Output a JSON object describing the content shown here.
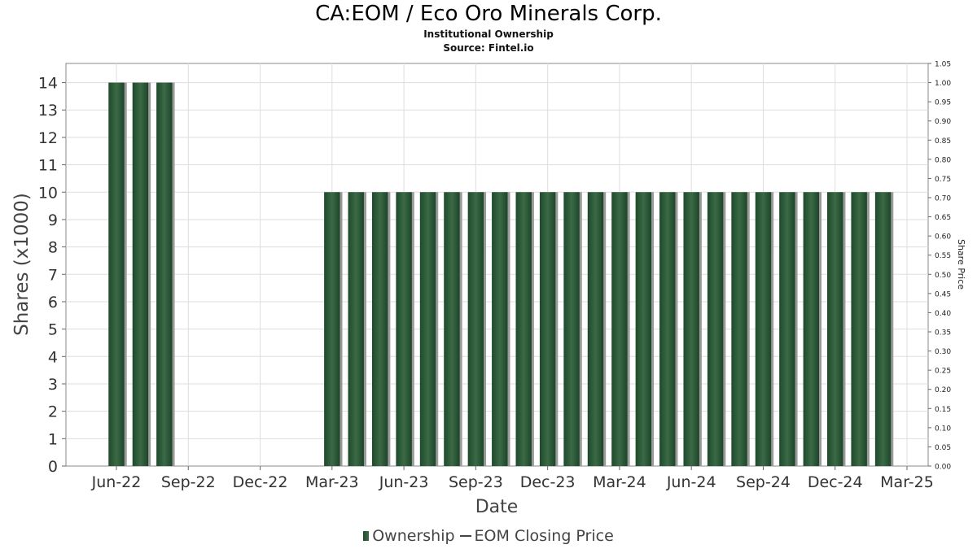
{
  "title": "CA:EOM / Eco Oro Minerals Corp.",
  "subtitle": "Institutional Ownership",
  "source": "Source: Fintel.io",
  "legend": {
    "ownership": "Ownership",
    "price": "EOM Closing Price"
  },
  "colors": {
    "bar": "#2a5436",
    "bar_dark": "#1f4a2c",
    "bar_shadow": "#9a9a9a",
    "grid": "#dddddd"
  },
  "chart_data": {
    "type": "bar",
    "xlabel": "Date",
    "ylabel": "Shares (x1000)",
    "y2label": "Share Price",
    "ylim": [
      0,
      14.7
    ],
    "y2lim": [
      0,
      1.05
    ],
    "grid": true,
    "legend_position": "bottom",
    "x_ticks": [
      "Jun-22",
      "Sep-22",
      "Dec-22",
      "Mar-23",
      "Jun-23",
      "Sep-23",
      "Dec-23",
      "Mar-24",
      "Jun-24",
      "Sep-24",
      "Dec-24",
      "Mar-25"
    ],
    "y_ticks": [
      0,
      1,
      2,
      3,
      4,
      5,
      6,
      7,
      8,
      9,
      10,
      11,
      12,
      13,
      14
    ],
    "y2_ticks": [
      "0.00",
      "0.05",
      "0.10",
      "0.15",
      "0.20",
      "0.25",
      "0.30",
      "0.35",
      "0.40",
      "0.45",
      "0.50",
      "0.55",
      "0.60",
      "0.65",
      "0.70",
      "0.75",
      "0.80",
      "0.85",
      "0.90",
      "0.95",
      "1.00",
      "1.05"
    ],
    "series": [
      {
        "name": "Ownership",
        "x": [
          "2022-06-01",
          "2022-07-01",
          "2022-08-01",
          "2023-03-01",
          "2023-04-01",
          "2023-05-01",
          "2023-06-01",
          "2023-07-01",
          "2023-08-01",
          "2023-09-01",
          "2023-10-01",
          "2023-11-01",
          "2023-12-01",
          "2024-01-01",
          "2024-02-01",
          "2024-03-01",
          "2024-04-01",
          "2024-05-01",
          "2024-06-01",
          "2024-07-01",
          "2024-08-01",
          "2024-09-01",
          "2024-10-01",
          "2024-11-01",
          "2024-12-01",
          "2025-01-01",
          "2025-02-01"
        ],
        "values": [
          14,
          14,
          14,
          10,
          10,
          10,
          10,
          10,
          10,
          10,
          10,
          10,
          10,
          10,
          10,
          10,
          10,
          10,
          10,
          10,
          10,
          10,
          10,
          10,
          10,
          10,
          10
        ]
      },
      {
        "name": "EOM Closing Price",
        "x": [],
        "values": []
      }
    ]
  }
}
